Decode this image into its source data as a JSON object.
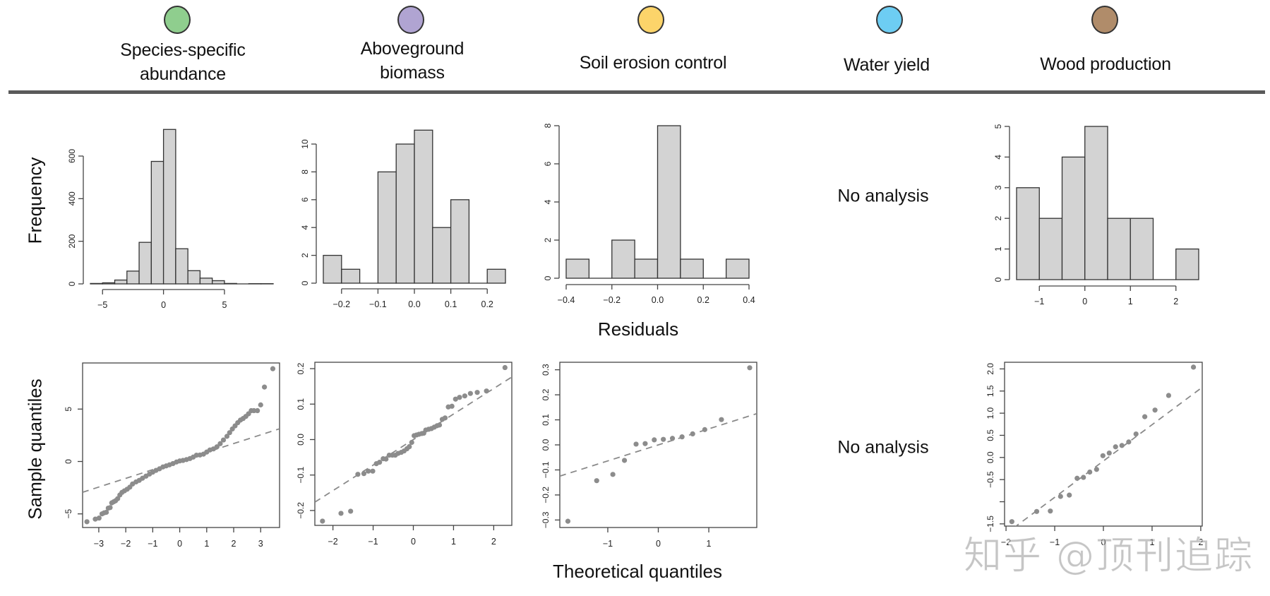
{
  "header": {
    "services": [
      {
        "label_lines": [
          "Species-specific",
          "abundance"
        ],
        "color": "#8fce8e"
      },
      {
        "label_lines": [
          "Aboveground",
          "biomass"
        ],
        "color": "#b0a4d2"
      },
      {
        "label_lines": [
          "Soil erosion control"
        ],
        "color": "#fcd46a"
      },
      {
        "label_lines": [
          "Water yield"
        ],
        "color": "#6dcdf3"
      },
      {
        "label_lines": [
          "Wood production"
        ],
        "color": "#b08c6a"
      }
    ]
  },
  "labels": {
    "frequency": "Frequency",
    "residuals": "Residuals",
    "sample_quantiles": "Sample quantiles",
    "theoretical_quantiles": "Theoretical quantiles",
    "no_analysis_hist": "No analysis",
    "no_analysis_qq": "No analysis",
    "watermark": "知乎 @顶刊追踪"
  },
  "chart_data": [
    {
      "id": "hist-abundance",
      "type": "bar",
      "service": "Species-specific abundance",
      "title": "",
      "xlabel": "",
      "ylabel": "Frequency",
      "bin_edges": [
        -6,
        -5,
        -4,
        -3,
        -2,
        -1,
        0,
        1,
        2,
        3,
        4,
        5,
        6,
        7,
        8,
        9
      ],
      "values": [
        2,
        5,
        18,
        60,
        195,
        575,
        725,
        165,
        62,
        27,
        15,
        2,
        0,
        1,
        1
      ],
      "xticks": [
        -5,
        0,
        5
      ],
      "xtick_labels": [
        "−5",
        "0",
        "5"
      ],
      "yticks": [
        0,
        200,
        400,
        600
      ],
      "ytick_labels": [
        "0",
        "200",
        "400",
        "600"
      ],
      "xlim": [
        -6,
        9
      ],
      "ylim": [
        0,
        600
      ],
      "grid": false
    },
    {
      "id": "hist-biomass",
      "type": "bar",
      "service": "Aboveground biomass",
      "title": "",
      "xlabel": "",
      "ylabel": "",
      "bin_edges": [
        -0.25,
        -0.2,
        -0.15,
        -0.1,
        -0.05,
        0,
        0.05,
        0.1,
        0.15,
        0.2,
        0.25
      ],
      "values": [
        2,
        1,
        0,
        8,
        10,
        11,
        4,
        6,
        0,
        1
      ],
      "xticks": [
        -0.2,
        -0.1,
        0,
        0.1,
        0.2
      ],
      "xtick_labels": [
        "−0.2",
        "−0.1",
        "0.0",
        "0.1",
        "0.2"
      ],
      "yticks": [
        0,
        2,
        4,
        6,
        8,
        10
      ],
      "ytick_labels": [
        "0",
        "2",
        "4",
        "6",
        "8",
        "10"
      ],
      "xlim": [
        -0.25,
        0.25
      ],
      "ylim": [
        0,
        10
      ],
      "grid": false
    },
    {
      "id": "hist-soil",
      "type": "bar",
      "service": "Soil erosion control",
      "title": "",
      "xlabel": "Residuals",
      "ylabel": "",
      "bin_edges": [
        -0.4,
        -0.3,
        -0.2,
        -0.1,
        0,
        0.1,
        0.2,
        0.3,
        0.4
      ],
      "values": [
        1,
        0,
        2,
        1,
        8,
        1,
        0,
        1
      ],
      "xticks": [
        -0.4,
        -0.2,
        0,
        0.2,
        0.4
      ],
      "xtick_labels": [
        "−0.4",
        "−0.2",
        "0.0",
        "0.2",
        "0.4"
      ],
      "yticks": [
        0,
        2,
        4,
        6,
        8
      ],
      "ytick_labels": [
        "0",
        "2",
        "4",
        "6",
        "8"
      ],
      "xlim": [
        -0.4,
        0.4
      ],
      "ylim": [
        0,
        8
      ],
      "grid": false
    },
    {
      "id": "hist-wood",
      "type": "bar",
      "service": "Wood production",
      "title": "",
      "xlabel": "",
      "ylabel": "",
      "bin_edges": [
        -1.5,
        -1,
        -0.5,
        0,
        0.5,
        1,
        1.5,
        2,
        2.5
      ],
      "values": [
        3,
        2,
        4,
        5,
        2,
        2,
        0,
        1
      ],
      "xticks": [
        -1,
        0,
        1,
        2
      ],
      "xtick_labels": [
        "−1",
        "0",
        "1",
        "2"
      ],
      "yticks": [
        0,
        1,
        2,
        3,
        4,
        5
      ],
      "ytick_labels": [
        "0",
        "1",
        "2",
        "3",
        "4",
        "5"
      ],
      "xlim": [
        -1.5,
        2.5
      ],
      "ylim": [
        0,
        5
      ],
      "grid": false
    },
    {
      "id": "qq-abundance",
      "type": "scatter",
      "service": "Species-specific abundance",
      "xlabel": "Theoretical quantiles",
      "ylabel": "Sample quantiles",
      "xlim": [
        -3.6,
        3.7
      ],
      "ylim": [
        -6.3,
        9.4
      ],
      "xticks": [
        -3,
        -2,
        -1,
        0,
        1,
        2,
        3
      ],
      "xtick_labels": [
        "−3",
        "−2",
        "−1",
        "0",
        "1",
        "2",
        "3"
      ],
      "yticks": [
        -5,
        0,
        5
      ],
      "ytick_labels": [
        "−5",
        "0",
        "5"
      ],
      "reference_line": {
        "slope": 0.83,
        "intercept": 0.05,
        "style": "dashed"
      },
      "points": [
        [
          -3.44,
          -5.75
        ],
        [
          -3.13,
          -5.5
        ],
        [
          -2.99,
          -5.4
        ],
        [
          -2.88,
          -5.0
        ],
        [
          -2.8,
          -4.9
        ],
        [
          -2.72,
          -4.85
        ],
        [
          -2.65,
          -4.45
        ],
        [
          -2.58,
          -4.4
        ],
        [
          -2.52,
          -3.95
        ],
        [
          -2.45,
          -3.85
        ],
        [
          -2.38,
          -3.75
        ],
        [
          -2.3,
          -3.55
        ],
        [
          -2.22,
          -3.2
        ],
        [
          -2.14,
          -2.95
        ],
        [
          -2.05,
          -2.8
        ],
        [
          -1.95,
          -2.65
        ],
        [
          -1.85,
          -2.45
        ],
        [
          -1.75,
          -2.15
        ],
        [
          -1.62,
          -1.95
        ],
        [
          -1.5,
          -1.8
        ],
        [
          -1.38,
          -1.6
        ],
        [
          -1.25,
          -1.4
        ],
        [
          -1.12,
          -1.2
        ],
        [
          -1.0,
          -1.02
        ],
        [
          -0.88,
          -0.85
        ],
        [
          -0.75,
          -0.7
        ],
        [
          -0.62,
          -0.52
        ],
        [
          -0.5,
          -0.42
        ],
        [
          -0.38,
          -0.32
        ],
        [
          -0.25,
          -0.2
        ],
        [
          -0.12,
          -0.05
        ],
        [
          0.0,
          0.05
        ],
        [
          0.12,
          0.1
        ],
        [
          0.25,
          0.18
        ],
        [
          0.38,
          0.28
        ],
        [
          0.5,
          0.42
        ],
        [
          0.62,
          0.6
        ],
        [
          0.75,
          0.62
        ],
        [
          0.88,
          0.7
        ],
        [
          1.0,
          0.9
        ],
        [
          1.12,
          1.1
        ],
        [
          1.25,
          1.2
        ],
        [
          1.38,
          1.4
        ],
        [
          1.5,
          1.7
        ],
        [
          1.62,
          2.05
        ],
        [
          1.75,
          2.4
        ],
        [
          1.85,
          2.75
        ],
        [
          1.95,
          3.1
        ],
        [
          2.05,
          3.4
        ],
        [
          2.15,
          3.7
        ],
        [
          2.25,
          3.95
        ],
        [
          2.35,
          4.1
        ],
        [
          2.45,
          4.3
        ],
        [
          2.55,
          4.55
        ],
        [
          2.65,
          4.85
        ],
        [
          2.75,
          4.85
        ],
        [
          2.88,
          4.85
        ],
        [
          3.0,
          5.4
        ],
        [
          3.14,
          7.1
        ],
        [
          3.45,
          8.85
        ]
      ]
    },
    {
      "id": "qq-biomass",
      "type": "scatter",
      "service": "Aboveground biomass",
      "xlabel": "Theoretical quantiles",
      "ylabel": "",
      "xlim": [
        -2.45,
        2.45
      ],
      "ylim": [
        -0.242,
        0.218
      ],
      "xticks": [
        -2,
        -1,
        0,
        1,
        2
      ],
      "xtick_labels": [
        "−2",
        "−1",
        "0",
        "1",
        "2"
      ],
      "yticks": [
        -0.2,
        -0.1,
        0,
        0.1,
        0.2
      ],
      "ytick_labels": [
        "−0.2",
        "−0.1",
        "0.0",
        "0.1",
        "0.2"
      ],
      "reference_line": {
        "slope": 0.072,
        "intercept": 0.0,
        "style": "dashed"
      },
      "points": [
        [
          -2.26,
          -0.23
        ],
        [
          -1.8,
          -0.208
        ],
        [
          -1.56,
          -0.202
        ],
        [
          -1.38,
          -0.098
        ],
        [
          -1.23,
          -0.096
        ],
        [
          -1.12,
          -0.089
        ],
        [
          -1.01,
          -0.089
        ],
        [
          -0.92,
          -0.068
        ],
        [
          -0.84,
          -0.064
        ],
        [
          -0.75,
          -0.054
        ],
        [
          -0.68,
          -0.055
        ],
        [
          -0.6,
          -0.044
        ],
        [
          -0.52,
          -0.044
        ],
        [
          -0.45,
          -0.044
        ],
        [
          -0.38,
          -0.039
        ],
        [
          -0.3,
          -0.036
        ],
        [
          -0.23,
          -0.032
        ],
        [
          -0.16,
          -0.026
        ],
        [
          -0.1,
          -0.02
        ],
        [
          -0.04,
          -0.008
        ],
        [
          0.02,
          0.011
        ],
        [
          0.08,
          0.013
        ],
        [
          0.14,
          0.015
        ],
        [
          0.21,
          0.017
        ],
        [
          0.26,
          0.018
        ],
        [
          0.31,
          0.027
        ],
        [
          0.38,
          0.029
        ],
        [
          0.45,
          0.031
        ],
        [
          0.52,
          0.035
        ],
        [
          0.59,
          0.039
        ],
        [
          0.65,
          0.041
        ],
        [
          0.72,
          0.057
        ],
        [
          0.79,
          0.061
        ],
        [
          0.87,
          0.092
        ],
        [
          0.96,
          0.094
        ],
        [
          1.05,
          0.114
        ],
        [
          1.15,
          0.119
        ],
        [
          1.28,
          0.123
        ],
        [
          1.42,
          0.13
        ],
        [
          1.59,
          0.133
        ],
        [
          1.82,
          0.137
        ],
        [
          2.28,
          0.203
        ]
      ]
    },
    {
      "id": "qq-soil",
      "type": "scatter",
      "service": "Soil erosion control",
      "xlabel": "Theoretical quantiles",
      "ylabel": "",
      "xlim": [
        -1.95,
        1.95
      ],
      "ylim": [
        -0.33,
        0.33
      ],
      "xticks": [
        -1,
        0,
        1
      ],
      "xtick_labels": [
        "−1",
        "0",
        "1"
      ],
      "yticks": [
        -0.3,
        -0.2,
        -0.1,
        0,
        0.1,
        0.2,
        0.3
      ],
      "ytick_labels": [
        "−0.3",
        "−0.2",
        "−0.1",
        "0.0",
        "0.1",
        "0.2",
        "0.3"
      ],
      "reference_line": {
        "slope": 0.064,
        "intercept": 0.0,
        "style": "dashed"
      },
      "points": [
        [
          -1.79,
          -0.305
        ],
        [
          -1.22,
          -0.143
        ],
        [
          -0.9,
          -0.118
        ],
        [
          -0.67,
          -0.062
        ],
        [
          -0.44,
          0.003
        ],
        [
          -0.26,
          0.005
        ],
        [
          -0.08,
          0.02
        ],
        [
          0.1,
          0.022
        ],
        [
          0.28,
          0.026
        ],
        [
          0.47,
          0.032
        ],
        [
          0.68,
          0.044
        ],
        [
          0.92,
          0.061
        ],
        [
          1.25,
          0.101
        ],
        [
          1.81,
          0.308
        ]
      ]
    },
    {
      "id": "qq-wood",
      "type": "scatter",
      "service": "Wood production",
      "xlabel": "Theoretical quantiles",
      "ylabel": "",
      "xlim": [
        -2.03,
        2.03
      ],
      "ylim": [
        -1.55,
        2.15
      ],
      "xticks": [
        -2,
        -1,
        0,
        1,
        2
      ],
      "xtick_labels": [
        "−2",
        "−1",
        "0",
        "1",
        "2"
      ],
      "yticks": [
        -1.5,
        -1.0,
        -0.5,
        0,
        0.5,
        1.0,
        1.5,
        2.0
      ],
      "ytick_labels": [
        "−1.5",
        "",
        "−0.5",
        "0.0",
        "0.5",
        "1.0",
        "1.5",
        "2.0"
      ],
      "reference_line": {
        "slope": 0.82,
        "intercept": -0.08,
        "style": "dashed"
      },
      "points": [
        [
          -1.88,
          -1.45
        ],
        [
          -1.37,
          -1.22
        ],
        [
          -1.09,
          -1.21
        ],
        [
          -0.88,
          -0.88
        ],
        [
          -0.7,
          -0.85
        ],
        [
          -0.54,
          -0.47
        ],
        [
          -0.41,
          -0.45
        ],
        [
          -0.28,
          -0.33
        ],
        [
          -0.14,
          -0.27
        ],
        [
          -0.01,
          0.04
        ],
        [
          0.12,
          0.1
        ],
        [
          0.25,
          0.24
        ],
        [
          0.38,
          0.27
        ],
        [
          0.52,
          0.35
        ],
        [
          0.67,
          0.53
        ],
        [
          0.85,
          0.92
        ],
        [
          1.06,
          1.07
        ],
        [
          1.34,
          1.4
        ],
        [
          1.85,
          2.04
        ]
      ]
    }
  ]
}
